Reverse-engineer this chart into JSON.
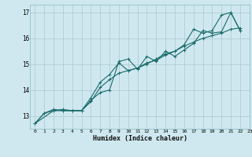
{
  "title": "",
  "xlabel": "Humidex (Indice chaleur)",
  "ylabel": "",
  "bg_color": "#cfe8ef",
  "grid_color": "#b0cdd4",
  "line_color": "#1a6b6b",
  "xlim": [
    -0.5,
    23
  ],
  "ylim": [
    12.5,
    17.3
  ],
  "xticks": [
    0,
    1,
    2,
    3,
    4,
    5,
    6,
    7,
    8,
    9,
    10,
    11,
    12,
    13,
    14,
    15,
    16,
    17,
    18,
    19,
    20,
    21,
    22,
    23
  ],
  "yticks": [
    13,
    14,
    15,
    16,
    17
  ],
  "lines": [
    {
      "x": [
        0,
        1,
        2,
        3,
        4,
        5,
        6,
        7,
        8,
        9,
        10,
        11,
        12,
        13,
        14,
        15,
        16,
        17,
        18,
        19,
        20,
        21,
        22
      ],
      "y": [
        12.7,
        13.1,
        13.2,
        13.2,
        13.2,
        13.2,
        13.6,
        13.9,
        14.0,
        15.1,
        15.2,
        14.8,
        15.3,
        15.1,
        15.5,
        15.3,
        15.55,
        15.8,
        16.3,
        16.2,
        16.25,
        17.0,
        16.3
      ]
    },
    {
      "x": [
        0,
        1,
        2,
        3,
        4,
        5,
        6,
        7,
        8,
        9,
        10,
        11,
        12,
        13,
        14,
        15,
        16,
        17,
        18,
        19,
        20,
        21,
        22
      ],
      "y": [
        12.7,
        13.1,
        13.25,
        13.2,
        13.2,
        13.2,
        13.55,
        14.1,
        14.4,
        14.65,
        14.75,
        14.85,
        15.0,
        15.2,
        15.4,
        15.5,
        15.7,
        15.85,
        16.0,
        16.1,
        16.2,
        16.35,
        16.4
      ]
    },
    {
      "x": [
        0,
        2,
        3,
        4,
        5,
        6,
        7,
        8,
        9,
        10,
        11,
        12,
        13,
        14,
        15,
        16,
        17,
        18,
        19,
        20,
        21,
        22
      ],
      "y": [
        12.7,
        13.2,
        13.25,
        13.2,
        13.2,
        13.7,
        14.3,
        14.6,
        15.05,
        14.75,
        14.85,
        15.05,
        15.15,
        15.35,
        15.5,
        15.75,
        16.35,
        16.2,
        16.3,
        16.9,
        17.0,
        16.3
      ]
    }
  ]
}
